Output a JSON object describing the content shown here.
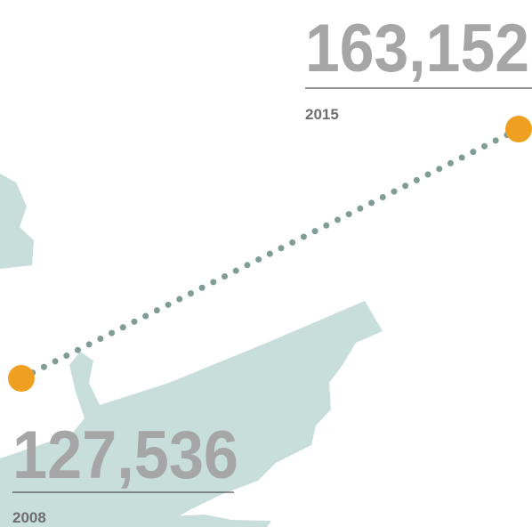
{
  "chart_data": {
    "type": "line",
    "x": [
      2008,
      2015
    ],
    "values": [
      127536,
      163152
    ],
    "value_labels": [
      "127,536",
      "163,152"
    ],
    "color": "#f0a020"
  }
}
